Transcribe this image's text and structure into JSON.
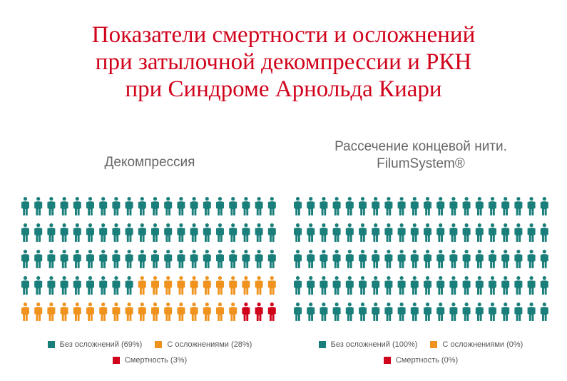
{
  "title_lines": [
    "Показатели смертности и осложнений",
    "при затылочной декомпрессии и РКН",
    "при Синдроме Арнольда Киари"
  ],
  "colors": {
    "title": "#d0021b",
    "no_complications": "#1a7f7a",
    "complications": "#f0931e",
    "mortality": "#d0021b"
  },
  "chart_data": [
    {
      "type": "pictogram",
      "title": "Декомпрессия",
      "rows": 5,
      "cols": 20,
      "total_icons": 100,
      "icon": "person-icon",
      "series": [
        {
          "name": "Без осложнений (69%)",
          "value": 69,
          "color": "#1a7f7a"
        },
        {
          "name": "С осложнениями (28%)",
          "value": 28,
          "color": "#f0931e"
        },
        {
          "name": "Смертность (3%)",
          "value": 3,
          "color": "#d0021b"
        }
      ]
    },
    {
      "type": "pictogram",
      "title_lines": [
        "Рассечение концевой нити.",
        "FilumSystem®"
      ],
      "rows": 5,
      "cols": 20,
      "total_icons": 100,
      "icon": "person-icon",
      "series": [
        {
          "name": "Без осложнений (100%)",
          "value": 100,
          "color": "#1a7f7a"
        },
        {
          "name": "С осложнениями (0%)",
          "value": 0,
          "color": "#f0931e"
        },
        {
          "name": "Смертность (0%)",
          "value": 0,
          "color": "#d0021b"
        }
      ]
    }
  ]
}
